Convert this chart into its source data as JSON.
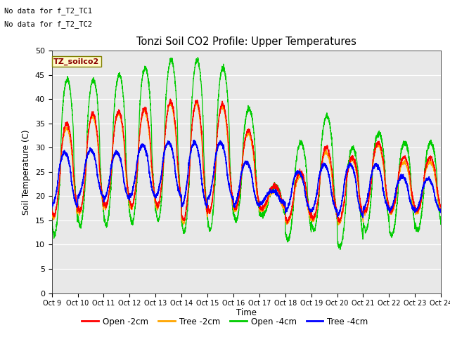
{
  "title": "Tonzi Soil CO2 Profile: Upper Temperatures",
  "ylabel": "Soil Temperature (C)",
  "xlabel": "Time",
  "annotation_line1": "No data for f_T2_TC1",
  "annotation_line2": "No data for f_T2_TC2",
  "file_label": "TZ_soilco2",
  "ylim": [
    0,
    50
  ],
  "yticks": [
    0,
    5,
    10,
    15,
    20,
    25,
    30,
    35,
    40,
    45,
    50
  ],
  "xtick_labels": [
    "Oct 9",
    "Oct 10",
    "Oct 11",
    "Oct 12",
    "Oct 13",
    "Oct 14",
    "Oct 15",
    "Oct 16",
    "Oct 17",
    "Oct 18",
    "Oct 19",
    "Oct 20",
    "Oct 21",
    "Oct 22",
    "Oct 23",
    "Oct 24"
  ],
  "colors": {
    "open_2cm": "#FF0000",
    "tree_2cm": "#FFA500",
    "open_4cm": "#00CC00",
    "tree_4cm": "#0000FF"
  },
  "legend_labels": [
    "Open -2cm",
    "Tree -2cm",
    "Open -4cm",
    "Tree -4cm"
  ],
  "bg_color": "#E8E8E8",
  "n_days": 15,
  "figsize": [
    6.4,
    4.8
  ],
  "dpi": 100
}
